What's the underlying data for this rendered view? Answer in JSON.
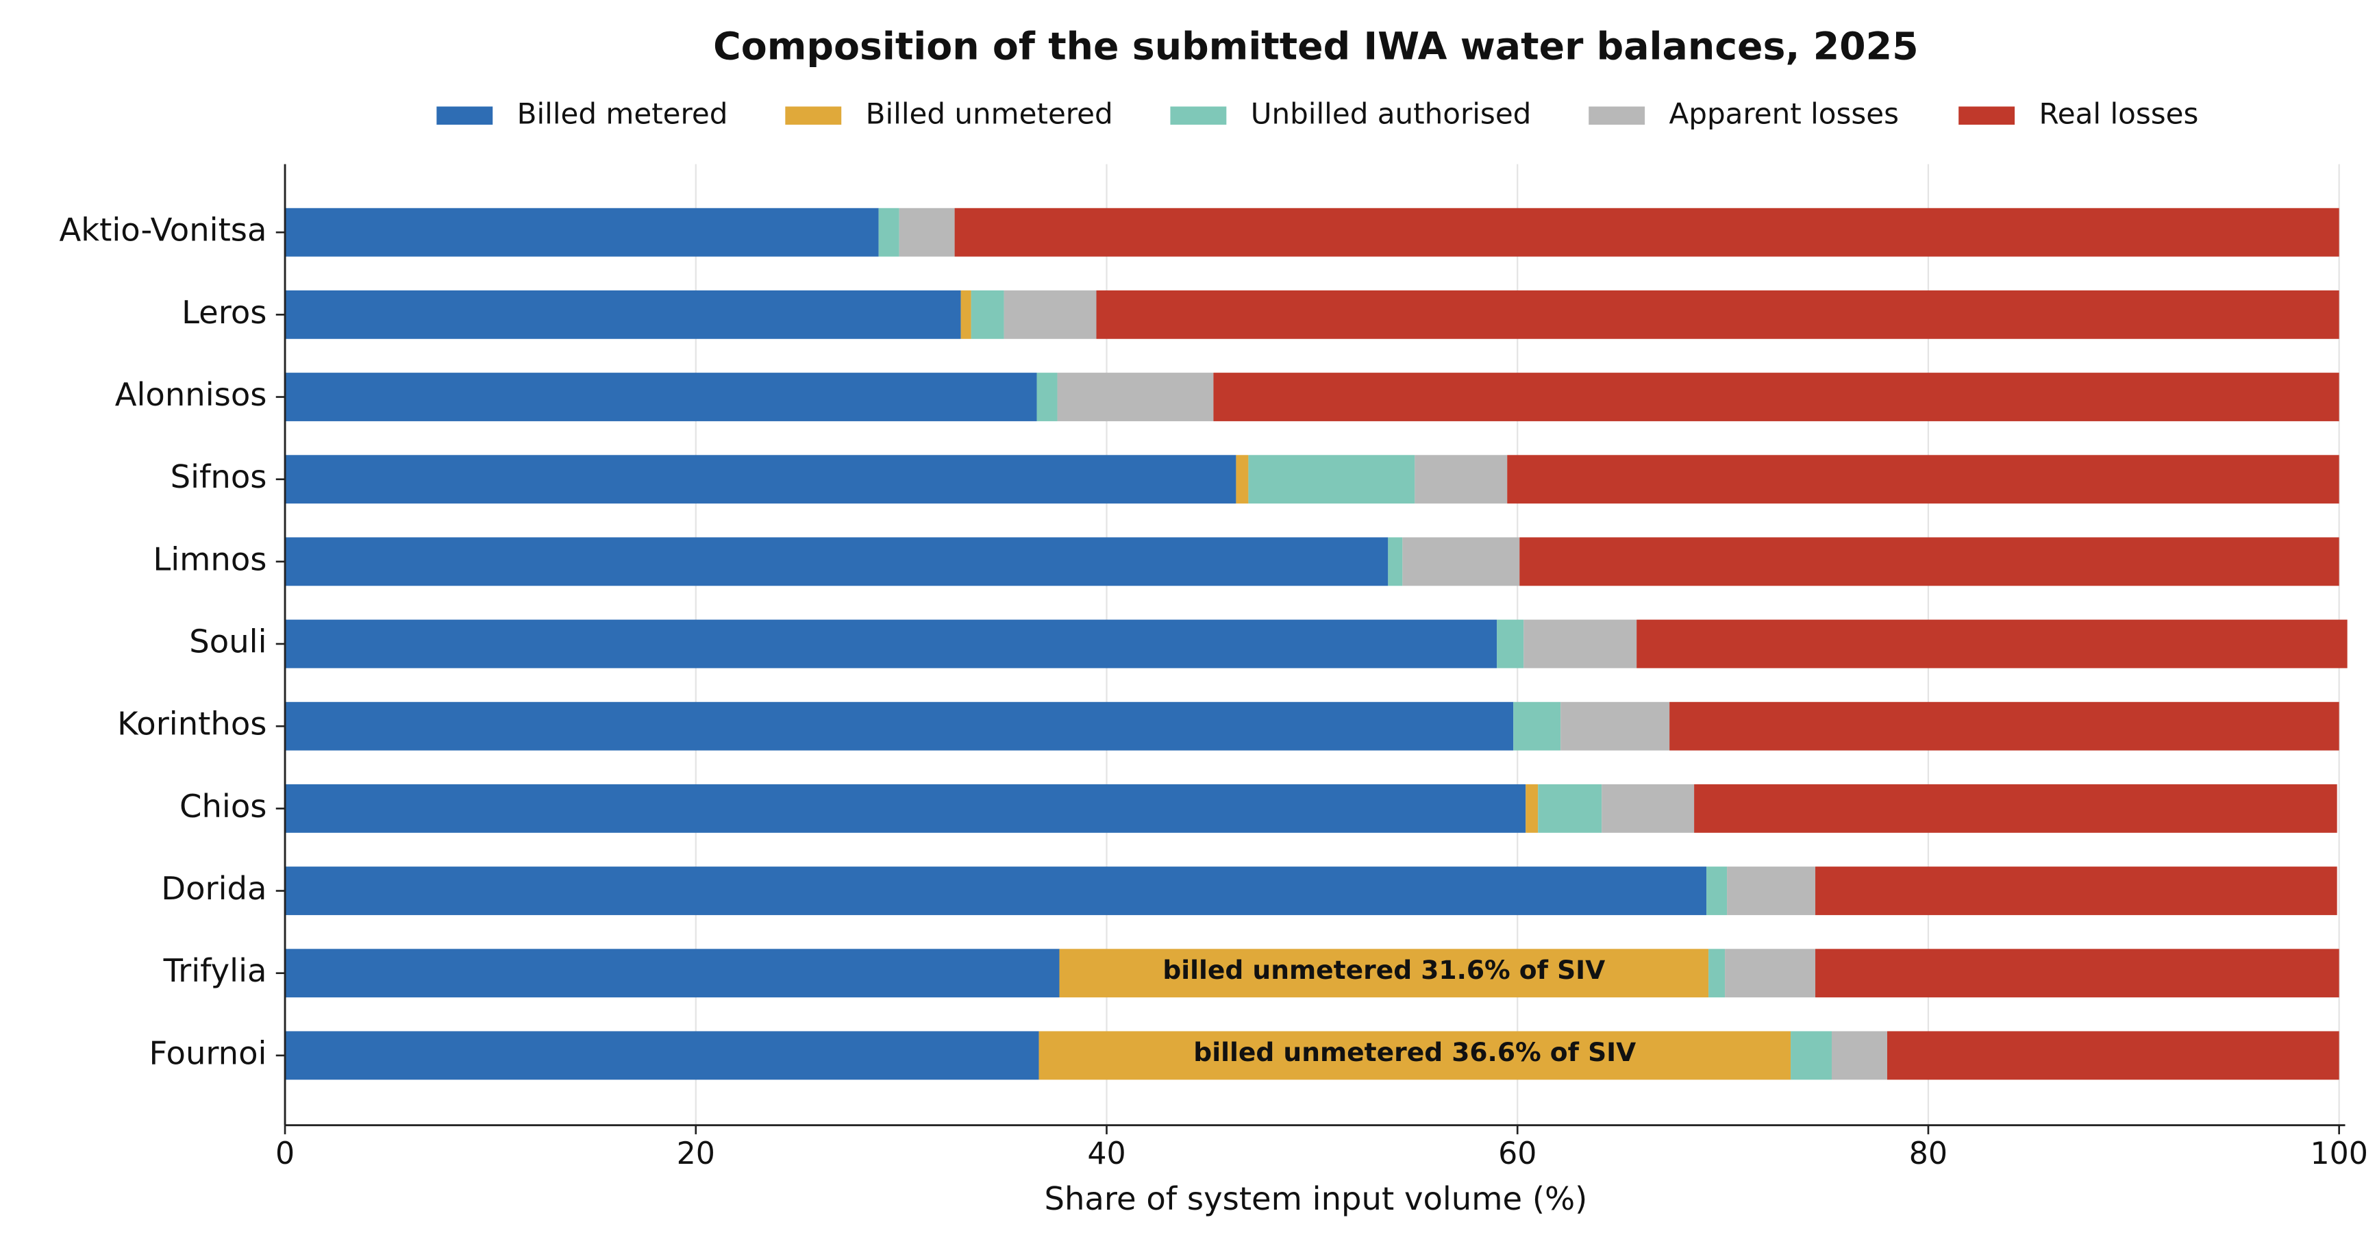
{
  "chart_data": {
    "type": "stacked-bar-horizontal",
    "title": "Composition of the submitted IWA water balances, 2025",
    "x_label": "Share of system input volume (%)",
    "categories": [
      "Aktio-Vonitsa",
      "Leros",
      "Alonnisos",
      "Sifnos",
      "Limnos",
      "Souli",
      "Korinthos",
      "Chios",
      "Dorida",
      "Trifylia",
      "Fournoi"
    ],
    "series": [
      {
        "name": "Billed metered",
        "color": "#2e6db4",
        "values": [
          28.9,
          32.9,
          36.6,
          46.3,
          53.7,
          59.0,
          59.8,
          60.4,
          69.2,
          37.7,
          36.7
        ]
      },
      {
        "name": "Billed unmetered",
        "color": "#e0a93a",
        "values": [
          0,
          0.5,
          0,
          0.6,
          0,
          0,
          0,
          0.6,
          0,
          31.6,
          36.6
        ]
      },
      {
        "name": "Unbilled authorised",
        "color": "#7fc8b8",
        "values": [
          1.0,
          1.6,
          1.0,
          8.1,
          0.7,
          1.3,
          2.3,
          3.1,
          1.0,
          0.8,
          2.0
        ]
      },
      {
        "name": "Apparent losses",
        "color": "#b8b8b8",
        "values": [
          2.7,
          4.5,
          7.6,
          4.5,
          5.7,
          5.5,
          5.3,
          4.5,
          4.3,
          4.4,
          2.7
        ]
      },
      {
        "name": "Real losses",
        "color": "#c0392b",
        "values": [
          67.4,
          60.5,
          54.8,
          40.5,
          39.9,
          34.6,
          32.6,
          31.3,
          25.4,
          25.5,
          22.0
        ]
      }
    ],
    "annotations": [
      {
        "category": "Trifylia",
        "series": "Billed unmetered",
        "text": "billed unmetered 31.6% of SIV"
      },
      {
        "category": "Fournoi",
        "series": "Billed unmetered",
        "text": "billed unmetered 36.6% of SIV"
      }
    ],
    "xlim": [
      0,
      100
    ],
    "xticks": [
      0,
      20,
      40,
      60,
      80,
      100
    ],
    "grid": true,
    "legend": "top"
  }
}
